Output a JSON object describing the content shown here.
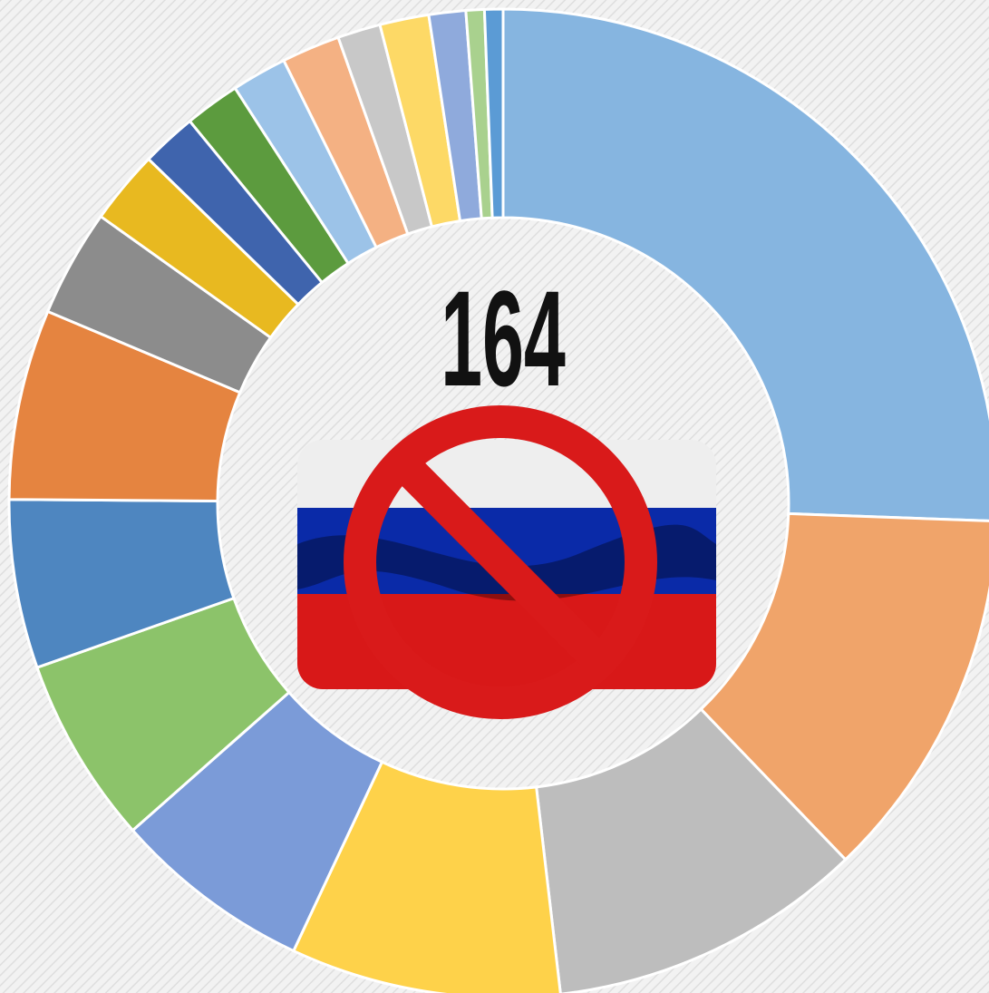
{
  "chart_data": {
    "type": "donut",
    "center_label": "164",
    "values": [
      25.5,
      12.2,
      10.3,
      8.8,
      6.5,
      6.1,
      5.5,
      6.2,
      3.5,
      2.4,
      1.8,
      1.8,
      1.8,
      1.9,
      1.4,
      1.6,
      1.2,
      0.6,
      0.6
    ],
    "colors": [
      "#86b5e0",
      "#f0a46a",
      "#bdbdbd",
      "#fed24a",
      "#7b9bd8",
      "#8cc36a",
      "#4e86c0",
      "#e58440",
      "#8c8c8c",
      "#e8b920",
      "#3f64ad",
      "#5c9b3e",
      "#9cc3e8",
      "#f4b183",
      "#c8c8c8",
      "#fdd966",
      "#8faadc",
      "#a9d18e",
      "#5b9bd5"
    ]
  }
}
